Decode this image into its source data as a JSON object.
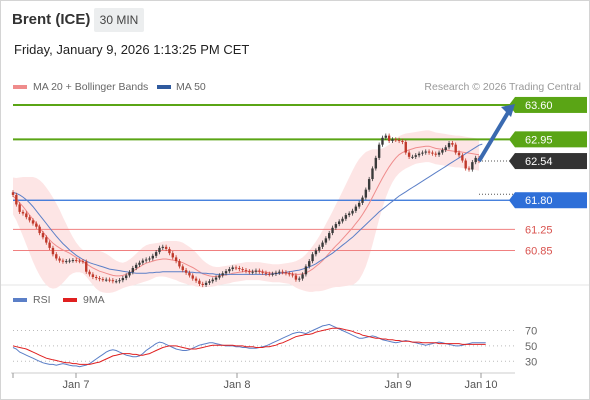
{
  "header": {
    "instrument": "Brent (ICE)",
    "timeframe": "30 MIN",
    "datetime": "Friday, January 9, 2026 1:13:25 PM CET"
  },
  "legend": {
    "ma20_label": "MA 20 + Bollinger Bands",
    "ma50_label": "MA 50",
    "rsi_label": "RSI",
    "rsi_ma_label": "9MA",
    "source": "Research © 2026 Trading Central"
  },
  "colors": {
    "candle_up": "#3a3a3a",
    "candle_down": "#c0392b",
    "ma20": "#ef8c8c",
    "bollinger_fill": "#fde2e2",
    "ma50": "#5b7fc7",
    "resistance": "#5aa515",
    "support_pivot": "#2e6fd8",
    "support": "#f08080",
    "last_price": "#333333",
    "rsi": "#5b7fc7",
    "rsi_ma": "#e02020",
    "arrow": "#3a6ab0"
  },
  "chart_data": [
    {
      "type": "candlestick",
      "title": "Brent (ICE) 30 MIN",
      "x_tick_labels": [
        "Jan 7",
        "Jan 8",
        "Jan 9",
        "Jan 10"
      ],
      "ylim": [
        60.35,
        63.75
      ],
      "levels": [
        {
          "value": 63.6,
          "label": "63.60",
          "kind": "resistance"
        },
        {
          "value": 62.95,
          "label": "62.95",
          "kind": "resistance"
        },
        {
          "value": 62.54,
          "label": "62.54",
          "kind": "last"
        },
        {
          "value": 61.8,
          "label": "61.80",
          "kind": "pivot"
        },
        {
          "value": 61.25,
          "label": "61.25",
          "kind": "support"
        },
        {
          "value": 60.85,
          "label": "60.85",
          "kind": "support"
        }
      ],
      "close": [
        61.9,
        61.72,
        61.58,
        61.55,
        61.48,
        61.42,
        61.36,
        61.3,
        61.18,
        61.1,
        61.0,
        60.9,
        60.78,
        60.7,
        60.66,
        60.64,
        60.65,
        60.66,
        60.67,
        60.66,
        60.65,
        60.64,
        60.45,
        60.4,
        60.35,
        60.33,
        60.31,
        60.3,
        60.3,
        60.29,
        60.27,
        60.27,
        60.29,
        60.33,
        60.38,
        60.44,
        60.52,
        60.58,
        60.62,
        60.66,
        60.68,
        60.7,
        60.75,
        60.82,
        60.9,
        60.92,
        60.88,
        60.8,
        60.72,
        60.65,
        60.55,
        60.48,
        60.43,
        60.38,
        60.32,
        60.28,
        60.22,
        60.2,
        60.24,
        60.27,
        60.3,
        60.34,
        60.38,
        60.42,
        60.46,
        60.5,
        60.53,
        60.52,
        60.5,
        60.48,
        60.46,
        60.44,
        60.45,
        60.47,
        60.45,
        60.43,
        60.41,
        60.4,
        60.41,
        60.43,
        60.45,
        60.44,
        60.42,
        60.4,
        60.38,
        60.3,
        60.32,
        60.4,
        60.55,
        60.65,
        60.78,
        60.85,
        60.92,
        61.0,
        61.08,
        61.18,
        61.28,
        61.35,
        61.4,
        61.45,
        61.52,
        61.55,
        61.6,
        61.68,
        61.75,
        61.85,
        62.0,
        62.2,
        62.4,
        62.6,
        62.85,
        62.98,
        63.02,
        62.92,
        62.95,
        62.94,
        62.92,
        62.9,
        62.7,
        62.62,
        62.62,
        62.65,
        62.68,
        62.7,
        62.72,
        62.7,
        62.68,
        62.66,
        62.7,
        62.75,
        62.8,
        62.88,
        62.85,
        62.7,
        62.65,
        62.55,
        62.4,
        62.38,
        62.52,
        62.6,
        62.54
      ],
      "ma20": [
        61.88,
        61.82,
        61.75,
        61.68,
        61.6,
        61.52,
        61.44,
        61.36,
        61.28,
        61.2,
        61.12,
        61.05,
        60.99,
        60.94,
        60.9,
        60.86,
        60.83,
        60.8,
        60.76,
        60.72,
        60.68,
        60.64,
        60.6,
        60.56,
        60.52,
        60.49,
        60.46,
        60.44,
        60.42,
        60.4,
        60.38,
        60.37,
        60.37,
        60.38,
        60.4,
        60.43,
        60.46,
        60.5,
        60.54,
        60.58,
        60.61,
        60.63,
        60.65,
        60.67,
        60.68,
        60.69,
        60.69,
        60.68,
        60.67,
        60.66,
        60.64,
        60.62,
        60.59,
        60.56,
        60.53,
        60.49,
        60.45,
        60.41,
        60.39,
        60.37,
        60.36,
        60.36,
        60.37,
        60.38,
        60.39,
        60.4,
        60.42,
        60.43,
        60.44,
        60.45,
        60.46,
        60.46,
        60.46,
        60.46,
        60.46,
        60.45,
        60.44,
        60.43,
        60.42,
        60.42,
        60.42,
        60.42,
        60.42,
        60.42,
        60.41,
        60.4,
        60.4,
        60.41,
        60.43,
        60.46,
        60.5,
        60.55,
        60.6,
        60.66,
        60.73,
        60.8,
        60.87,
        60.94,
        61.0,
        61.07,
        61.14,
        61.21,
        61.28,
        61.36,
        61.44,
        61.53,
        61.63,
        61.74,
        61.86,
        61.98,
        62.1,
        62.22,
        62.33,
        62.43,
        62.52,
        62.6,
        62.66,
        62.7,
        62.73,
        62.75,
        62.77,
        62.79,
        62.8,
        62.81,
        62.82,
        62.82,
        62.8,
        62.78,
        62.77,
        62.76,
        62.75,
        62.74,
        62.73,
        62.72,
        62.72,
        62.71,
        62.7,
        62.69,
        62.68,
        62.67,
        62.66
      ],
      "bollinger_width": [
        0.35,
        0.4,
        0.48,
        0.56,
        0.64,
        0.72,
        0.8,
        0.86,
        0.9,
        0.92,
        0.92,
        0.9,
        0.86,
        0.8,
        0.72,
        0.62,
        0.52,
        0.42,
        0.34,
        0.28,
        0.24,
        0.22,
        0.24,
        0.28,
        0.32,
        0.36,
        0.38,
        0.38,
        0.37,
        0.35,
        0.32,
        0.29,
        0.26,
        0.24,
        0.24,
        0.25,
        0.27,
        0.29,
        0.31,
        0.33,
        0.34,
        0.34,
        0.33,
        0.32,
        0.32,
        0.33,
        0.34,
        0.35,
        0.36,
        0.37,
        0.38,
        0.38,
        0.37,
        0.36,
        0.34,
        0.32,
        0.29,
        0.26,
        0.23,
        0.21,
        0.19,
        0.18,
        0.17,
        0.17,
        0.17,
        0.17,
        0.17,
        0.17,
        0.17,
        0.17,
        0.17,
        0.17,
        0.17,
        0.17,
        0.17,
        0.17,
        0.17,
        0.17,
        0.17,
        0.17,
        0.17,
        0.18,
        0.19,
        0.2,
        0.22,
        0.25,
        0.28,
        0.31,
        0.35,
        0.39,
        0.43,
        0.47,
        0.52,
        0.57,
        0.62,
        0.67,
        0.72,
        0.78,
        0.84,
        0.9,
        0.96,
        1.02,
        1.08,
        1.12,
        1.14,
        1.12,
        1.08,
        1.0,
        0.9,
        0.78,
        0.66,
        0.56,
        0.48,
        0.42,
        0.38,
        0.36,
        0.35,
        0.34,
        0.33,
        0.32,
        0.31,
        0.3,
        0.3,
        0.3,
        0.3,
        0.3,
        0.3,
        0.3,
        0.3,
        0.3,
        0.3,
        0.3,
        0.3,
        0.3,
        0.3,
        0.3,
        0.3,
        0.3,
        0.3,
        0.3,
        0.3,
        0.3
      ],
      "ma50": [
        61.95,
        61.93,
        61.9,
        61.86,
        61.81,
        61.75,
        61.68,
        61.6,
        61.52,
        61.44,
        61.36,
        61.28,
        61.2,
        61.12,
        61.05,
        60.98,
        60.92,
        60.86,
        60.81,
        60.76,
        60.72,
        60.68,
        60.65,
        60.62,
        60.6,
        60.58,
        60.56,
        60.54,
        60.52,
        60.5,
        60.49,
        60.48,
        60.47,
        60.46,
        60.45,
        60.44,
        60.43,
        60.42,
        60.42,
        60.42,
        60.42,
        60.43,
        60.43,
        60.44,
        60.44,
        60.45,
        60.45,
        60.45,
        60.45,
        60.45,
        60.45,
        60.45,
        60.45,
        60.44,
        60.44,
        60.43,
        60.43,
        60.42,
        60.42,
        60.41,
        60.41,
        60.4,
        60.4,
        60.4,
        60.4,
        60.4,
        60.4,
        60.4,
        60.4,
        60.4,
        60.4,
        60.4,
        60.4,
        60.4,
        60.4,
        60.4,
        60.4,
        60.4,
        60.41,
        60.41,
        60.42,
        60.43,
        60.44,
        60.45,
        60.46,
        60.47,
        60.48,
        60.5,
        60.52,
        60.54,
        60.57,
        60.6,
        60.64,
        60.68,
        60.72,
        60.76,
        60.8,
        60.85,
        60.9,
        60.95,
        61.0,
        61.05,
        61.1,
        61.16,
        61.22,
        61.28,
        61.34,
        61.4,
        61.46,
        61.52,
        61.58,
        61.63,
        61.68,
        61.73,
        61.78,
        61.83,
        61.88,
        61.92,
        61.96,
        62.0,
        62.04,
        62.08,
        62.12,
        62.16,
        62.2,
        62.24,
        62.28,
        62.32,
        62.36,
        62.4,
        62.44,
        62.48,
        62.52,
        62.56,
        62.6,
        62.64,
        62.68,
        62.72,
        62.76,
        62.8,
        62.84,
        62.86
      ]
    },
    {
      "type": "line",
      "title": "RSI",
      "ylim": [
        20,
        85
      ],
      "y_ticks": [
        70,
        50,
        30
      ],
      "series": [
        {
          "name": "RSI",
          "values": [
            48,
            46,
            42,
            40,
            38,
            36,
            34,
            32,
            30,
            28,
            27,
            26,
            26,
            25,
            26,
            27,
            26,
            25,
            24,
            24,
            23,
            24,
            25,
            27,
            30,
            33,
            36,
            39,
            42,
            44,
            45,
            44,
            42,
            40,
            38,
            37,
            36,
            36,
            37,
            40,
            44,
            47,
            50,
            53,
            55,
            54,
            52,
            50,
            48,
            46,
            45,
            44,
            44,
            45,
            47,
            49,
            51,
            52,
            53,
            54,
            54,
            53,
            52,
            51,
            50,
            50,
            50,
            49,
            49,
            48,
            48,
            47,
            47,
            47,
            48,
            49,
            50,
            52,
            54,
            56,
            58,
            60,
            62,
            64,
            66,
            67,
            68,
            67,
            66,
            68,
            70,
            72,
            74,
            76,
            77,
            78,
            76,
            74,
            72,
            70,
            68,
            66,
            64,
            62,
            60,
            60,
            61,
            62,
            63,
            62,
            60,
            58,
            57,
            56,
            55,
            54,
            55,
            56,
            57,
            56,
            55,
            54,
            53,
            52,
            51,
            52,
            53,
            54,
            55,
            54,
            53,
            52,
            51,
            50,
            50,
            51,
            52,
            53,
            54,
            54,
            54,
            54,
            54
          ]
        },
        {
          "name": "9MA",
          "values": [
            50,
            49,
            48,
            47,
            46,
            44,
            42,
            40,
            38,
            36,
            34,
            33,
            32,
            31,
            30,
            29,
            28,
            28,
            27,
            27,
            26,
            26,
            26,
            26,
            27,
            28,
            29,
            31,
            33,
            35,
            37,
            38,
            39,
            40,
            40,
            40,
            39,
            39,
            38,
            38,
            39,
            40,
            42,
            44,
            46,
            48,
            49,
            50,
            50,
            50,
            49,
            48,
            47,
            46,
            46,
            46,
            47,
            48,
            49,
            50,
            51,
            51,
            51,
            51,
            51,
            51,
            51,
            50,
            50,
            50,
            49,
            49,
            49,
            48,
            48,
            48,
            49,
            49,
            50,
            51,
            53,
            54,
            56,
            58,
            60,
            62,
            63,
            64,
            65,
            65,
            66,
            68,
            69,
            70,
            71,
            72,
            73,
            73,
            73,
            72,
            71,
            70,
            69,
            67,
            66,
            64,
            63,
            62,
            61,
            60,
            60,
            59,
            59,
            58,
            58,
            57,
            57,
            56,
            56,
            56,
            55,
            55,
            55,
            54,
            54,
            54,
            54,
            54,
            53,
            53,
            53,
            53,
            53,
            53,
            53,
            52,
            52,
            52,
            52,
            52,
            52,
            52,
            52
          ]
        }
      ]
    }
  ]
}
